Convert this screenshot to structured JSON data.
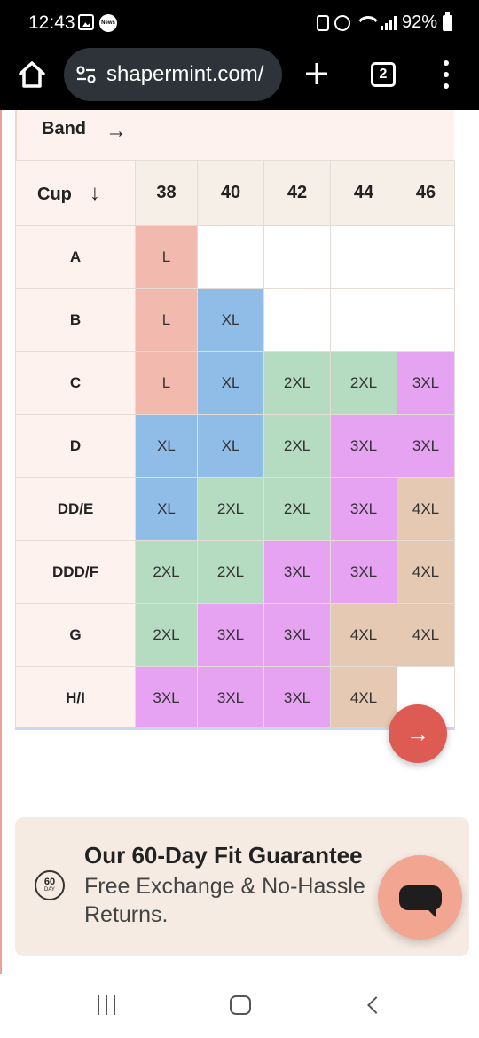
{
  "status_bar": {
    "time": "12:43",
    "news_badge": "News",
    "battery": "92%"
  },
  "browser": {
    "url": "shapermint.com/",
    "tab_count": "2"
  },
  "size_chart": {
    "band_label": "Band",
    "band_arrow": "→",
    "cup_label": "Cup",
    "cup_arrow": "↓",
    "bands": [
      "38",
      "40",
      "42",
      "44",
      "46"
    ],
    "rows": [
      {
        "cup": "A",
        "sizes": [
          "L",
          "",
          "",
          "",
          ""
        ]
      },
      {
        "cup": "B",
        "sizes": [
          "L",
          "XL",
          "",
          "",
          ""
        ]
      },
      {
        "cup": "C",
        "sizes": [
          "L",
          "XL",
          "2XL",
          "2XL",
          "3XL"
        ]
      },
      {
        "cup": "D",
        "sizes": [
          "XL",
          "XL",
          "2XL",
          "3XL",
          "3XL"
        ]
      },
      {
        "cup": "DD/E",
        "sizes": [
          "XL",
          "2XL",
          "2XL",
          "3XL",
          "4XL"
        ]
      },
      {
        "cup": "DDD/F",
        "sizes": [
          "2XL",
          "2XL",
          "3XL",
          "3XL",
          "4XL"
        ]
      },
      {
        "cup": "G",
        "sizes": [
          "2XL",
          "3XL",
          "3XL",
          "4XL",
          "4XL"
        ]
      },
      {
        "cup": "H/I",
        "sizes": [
          "3XL",
          "3XL",
          "3XL",
          "4XL",
          ""
        ]
      }
    ],
    "size_colors": {
      "L": "#f2b9ae",
      "XL": "#8fbde8",
      "2XL": "#b5dbc1",
      "3XL": "#e6a3f2",
      "4XL": "#e6c9b3"
    },
    "next_arrow": "→"
  },
  "guarantee": {
    "seal_number": "60",
    "seal_label": "DAY",
    "title": "Our 60-Day Fit Guarantee",
    "subtitle": "Free Exchange & No-Hassle Returns."
  },
  "icons": {
    "home": "home-icon",
    "site_settings": "tune-icon",
    "new_tab": "plus-icon",
    "menu": "more-vert-icon",
    "chat": "chat-icon"
  }
}
